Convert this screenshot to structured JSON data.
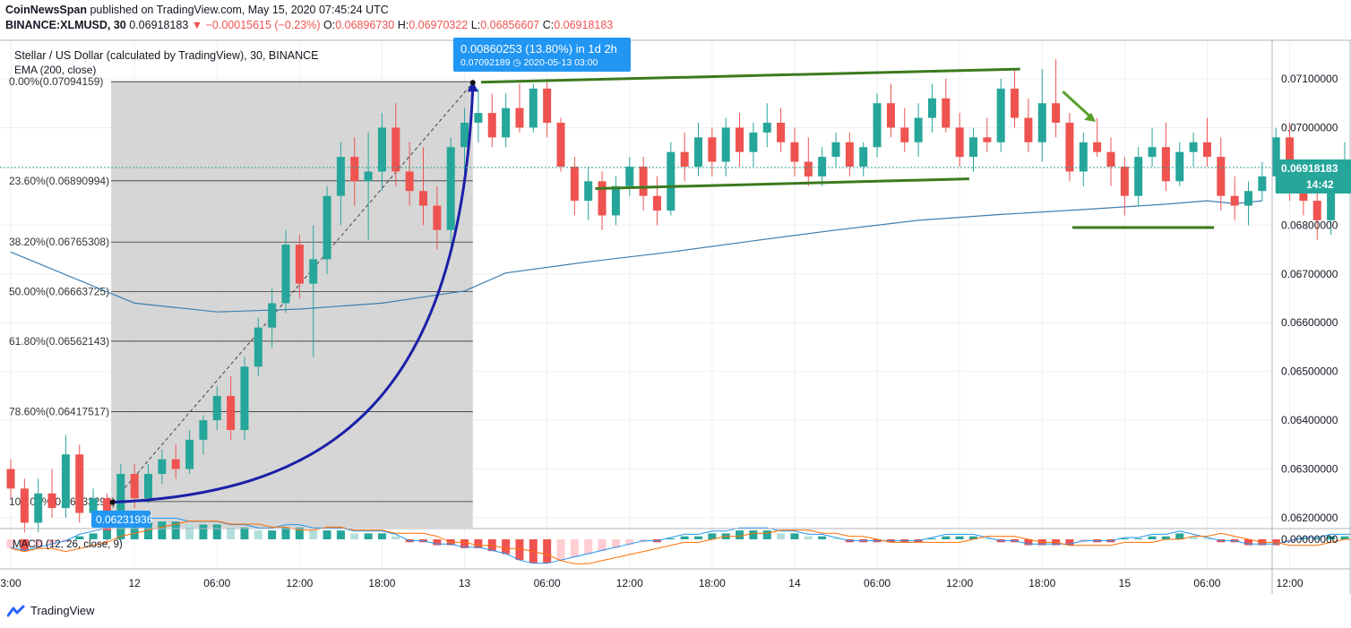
{
  "header": {
    "publisher": "CoinNewsSpan",
    "published_text": "published on TradingView.com, May 15, 2020 07:45:24 UTC",
    "symbol": "BINANCE:XLMUSD, 30",
    "last": "0.06918183",
    "change": "▼ −0.00015615 (−0.23%)",
    "o_label": "O:",
    "o": "0.06896730",
    "h_label": "H:",
    "h": "0.06970322",
    "l_label": "L:",
    "l": "0.06856607",
    "c_label": "C:",
    "c": "0.06918183"
  },
  "legend": {
    "title": "Stellar / US Dollar (calculated by TradingView), 30, BINANCE",
    "ema": "EMA (200, close)",
    "macd": "MACD (12, 26, close, 9)"
  },
  "measure": {
    "main": "0.00860253 (13.80%) in 1d 2h",
    "sub": "0.07092189 ◷ 2020-05-13  03:00",
    "start": "0.06231936",
    "color": "#2196f3"
  },
  "price_tag": {
    "value": "0.06918183",
    "countdown": "14:42",
    "color": "#26a69a"
  },
  "footer": {
    "brand": "TradingView"
  },
  "colors": {
    "up": "#26a69a",
    "down": "#ef5350",
    "ema": "#3d7fb0",
    "curve": "#1b1fa8",
    "trend": "#3b7a1e",
    "fib": "#333333"
  },
  "chart_data": {
    "type": "candlestick",
    "title": "Stellar / US Dollar (calculated by TradingView), 30, BINANCE",
    "x_ticks": [
      {
        "t": 0,
        "label": "3:00"
      },
      {
        "t": 9,
        "label": "12"
      },
      {
        "t": 15,
        "label": "06:00"
      },
      {
        "t": 21,
        "label": "12:00"
      },
      {
        "t": 27,
        "label": "18:00"
      },
      {
        "t": 33,
        "label": "13"
      },
      {
        "t": 39,
        "label": "06:00"
      },
      {
        "t": 45,
        "label": "12:00"
      },
      {
        "t": 51,
        "label": "18:00"
      },
      {
        "t": 57,
        "label": "14"
      },
      {
        "t": 63,
        "label": "06:00"
      },
      {
        "t": 69,
        "label": "12:00"
      },
      {
        "t": 75,
        "label": "18:00"
      },
      {
        "t": 81,
        "label": "15"
      },
      {
        "t": 87,
        "label": "06:00"
      },
      {
        "t": 93,
        "label": "12:00"
      }
    ],
    "y_ticks": [
      "0.07100000",
      "0.07000000",
      "0.06800000",
      "0.06700000",
      "0.06600000",
      "0.06500000",
      "0.06400000",
      "0.06300000",
      "0.06200000"
    ],
    "ylim": [
      0.0616,
      0.0716
    ],
    "fibonacci": [
      {
        "label": "0.00%(0.07094159)",
        "price": 0.07094159
      },
      {
        "label": "23.60%(0.06890994)",
        "price": 0.06890994
      },
      {
        "label": "38.20%(0.06765308)",
        "price": 0.06765308
      },
      {
        "label": "50.00%(0.06663725)",
        "price": 0.06663725
      },
      {
        "label": "61.80%(0.06562143)",
        "price": 0.06562143
      },
      {
        "label": "78.60%(0.06417517)",
        "price": 0.06417517
      },
      {
        "label": "100.00%(0.06233291)",
        "price": 0.06233291
      }
    ],
    "macd_ticks": [
      "0.00000000"
    ],
    "ohlc": [
      [
        0.063,
        0.0632,
        0.0624,
        0.0626
      ],
      [
        0.0626,
        0.0628,
        0.0617,
        0.0619
      ],
      [
        0.0619,
        0.0628,
        0.0617,
        0.0625
      ],
      [
        0.0625,
        0.063,
        0.062,
        0.0622
      ],
      [
        0.0622,
        0.0637,
        0.062,
        0.0633
      ],
      [
        0.0633,
        0.0635,
        0.0619,
        0.0621
      ],
      [
        0.0621,
        0.0626,
        0.0618,
        0.0624
      ],
      [
        0.0624,
        0.0625,
        0.0615,
        0.0617
      ],
      [
        0.0617,
        0.0631,
        0.0615,
        0.0629
      ],
      [
        0.0629,
        0.0631,
        0.0622,
        0.0624
      ],
      [
        0.0624,
        0.0631,
        0.0623,
        0.0629
      ],
      [
        0.0629,
        0.0634,
        0.0627,
        0.0632
      ],
      [
        0.0632,
        0.0635,
        0.0628,
        0.063
      ],
      [
        0.063,
        0.0638,
        0.0629,
        0.0636
      ],
      [
        0.0636,
        0.0641,
        0.0633,
        0.064
      ],
      [
        0.064,
        0.0647,
        0.0638,
        0.0645
      ],
      [
        0.0645,
        0.0649,
        0.0636,
        0.0638
      ],
      [
        0.0638,
        0.0653,
        0.0636,
        0.0651
      ],
      [
        0.0651,
        0.0661,
        0.0649,
        0.0659
      ],
      [
        0.0659,
        0.0667,
        0.0655,
        0.0664
      ],
      [
        0.0664,
        0.0679,
        0.0662,
        0.0676
      ],
      [
        0.0676,
        0.0678,
        0.0665,
        0.0668
      ],
      [
        0.0668,
        0.068,
        0.0653,
        0.0673
      ],
      [
        0.0673,
        0.0688,
        0.067,
        0.0686
      ],
      [
        0.0686,
        0.0697,
        0.068,
        0.0694
      ],
      [
        0.0694,
        0.0698,
        0.0684,
        0.0689
      ],
      [
        0.0689,
        0.0699,
        0.0677,
        0.0691
      ],
      [
        0.0691,
        0.0703,
        0.0687,
        0.07
      ],
      [
        0.07,
        0.0705,
        0.0688,
        0.0691
      ],
      [
        0.0691,
        0.0697,
        0.0684,
        0.0687
      ],
      [
        0.0687,
        0.0696,
        0.068,
        0.0684
      ],
      [
        0.0684,
        0.0688,
        0.0675,
        0.0679
      ],
      [
        0.0679,
        0.0698,
        0.0676,
        0.0696
      ],
      [
        0.0696,
        0.0704,
        0.069,
        0.0701
      ],
      [
        0.0701,
        0.0708,
        0.0697,
        0.0703
      ],
      [
        0.0703,
        0.0707,
        0.0696,
        0.0698
      ],
      [
        0.0698,
        0.0707,
        0.0696,
        0.0704
      ],
      [
        0.0704,
        0.0709,
        0.0699,
        0.07
      ],
      [
        0.07,
        0.0709,
        0.0699,
        0.0708
      ],
      [
        0.0708,
        0.071,
        0.0698,
        0.0701
      ],
      [
        0.0701,
        0.0702,
        0.0691,
        0.0692
      ],
      [
        0.0692,
        0.0694,
        0.0682,
        0.0685
      ],
      [
        0.0685,
        0.0692,
        0.0681,
        0.0689
      ],
      [
        0.0689,
        0.0691,
        0.0679,
        0.0682
      ],
      [
        0.0682,
        0.069,
        0.068,
        0.0688
      ],
      [
        0.0688,
        0.0694,
        0.0686,
        0.0692
      ],
      [
        0.0692,
        0.0694,
        0.0683,
        0.0686
      ],
      [
        0.0686,
        0.069,
        0.068,
        0.0683
      ],
      [
        0.0683,
        0.0697,
        0.0682,
        0.0695
      ],
      [
        0.0695,
        0.0699,
        0.0689,
        0.0692
      ],
      [
        0.0692,
        0.0701,
        0.069,
        0.0698
      ],
      [
        0.0698,
        0.07,
        0.069,
        0.0693
      ],
      [
        0.0693,
        0.0702,
        0.069,
        0.07
      ],
      [
        0.07,
        0.0703,
        0.0692,
        0.0695
      ],
      [
        0.0695,
        0.0701,
        0.0692,
        0.0699
      ],
      [
        0.0699,
        0.0705,
        0.0696,
        0.0701
      ],
      [
        0.0701,
        0.0704,
        0.0695,
        0.0697
      ],
      [
        0.0697,
        0.07,
        0.069,
        0.0693
      ],
      [
        0.0693,
        0.0698,
        0.0688,
        0.069
      ],
      [
        0.069,
        0.0696,
        0.0688,
        0.0694
      ],
      [
        0.0694,
        0.0699,
        0.0692,
        0.0697
      ],
      [
        0.0697,
        0.0699,
        0.069,
        0.0692
      ],
      [
        0.0692,
        0.0697,
        0.069,
        0.0696
      ],
      [
        0.0696,
        0.0707,
        0.0694,
        0.0705
      ],
      [
        0.0705,
        0.0709,
        0.0698,
        0.07
      ],
      [
        0.07,
        0.0704,
        0.0695,
        0.0697
      ],
      [
        0.0697,
        0.0705,
        0.0694,
        0.0702
      ],
      [
        0.0702,
        0.0709,
        0.0699,
        0.0706
      ],
      [
        0.0706,
        0.071,
        0.0699,
        0.07
      ],
      [
        0.07,
        0.0703,
        0.0692,
        0.0694
      ],
      [
        0.0694,
        0.07,
        0.0691,
        0.0698
      ],
      [
        0.0698,
        0.0702,
        0.0695,
        0.0697
      ],
      [
        0.0697,
        0.071,
        0.0695,
        0.0708
      ],
      [
        0.0708,
        0.0712,
        0.07,
        0.0702
      ],
      [
        0.0702,
        0.0706,
        0.0695,
        0.0697
      ],
      [
        0.0697,
        0.0712,
        0.0693,
        0.0705
      ],
      [
        0.0705,
        0.0714,
        0.0698,
        0.0701
      ],
      [
        0.0701,
        0.0703,
        0.0689,
        0.0691
      ],
      [
        0.0691,
        0.0699,
        0.0688,
        0.0697
      ],
      [
        0.0697,
        0.0702,
        0.0694,
        0.0695
      ],
      [
        0.0695,
        0.0698,
        0.0688,
        0.0692
      ],
      [
        0.0692,
        0.0694,
        0.0682,
        0.0686
      ],
      [
        0.0686,
        0.0696,
        0.0684,
        0.0694
      ],
      [
        0.0694,
        0.07,
        0.0692,
        0.0696
      ],
      [
        0.0696,
        0.0701,
        0.0687,
        0.0689
      ],
      [
        0.0689,
        0.0697,
        0.0688,
        0.0695
      ],
      [
        0.0695,
        0.0699,
        0.0692,
        0.0697
      ],
      [
        0.0697,
        0.0702,
        0.0692,
        0.0694
      ],
      [
        0.0694,
        0.0698,
        0.0683,
        0.0686
      ],
      [
        0.0686,
        0.069,
        0.0681,
        0.0684
      ],
      [
        0.0684,
        0.0689,
        0.068,
        0.0687
      ],
      [
        0.0687,
        0.0693,
        0.0685,
        0.069
      ],
      [
        0.069,
        0.07,
        0.0687,
        0.0698
      ],
      [
        0.0698,
        0.0701,
        0.0685,
        0.0688
      ],
      [
        0.0688,
        0.0692,
        0.0682,
        0.0685
      ],
      [
        0.0685,
        0.0688,
        0.0677,
        0.0681
      ],
      [
        0.0681,
        0.0693,
        0.0678,
        0.069
      ],
      [
        0.069,
        0.0697,
        0.0689,
        0.0692
      ],
      [
        0.0692,
        0.0697,
        0.0688,
        0.0691
      ],
      [
        0.0691,
        0.0694,
        0.0686,
        0.0689
      ],
      [
        0.0689,
        0.0692,
        0.0679,
        0.0681
      ],
      [
        0.0681,
        0.069,
        0.0674,
        0.0688
      ],
      [
        0.0688,
        0.0693,
        0.0685,
        0.069
      ],
      [
        0.069,
        0.0696,
        0.0688,
        0.0694
      ],
      [
        0.0694,
        0.0703,
        0.069,
        0.0697
      ],
      [
        0.0697,
        0.07,
        0.0687,
        0.0689
      ],
      [
        0.0689,
        0.0695,
        0.0684,
        0.0686
      ],
      [
        0.0686,
        0.07,
        0.0682,
        0.0697
      ],
      [
        0.0697,
        0.0699,
        0.0688,
        0.0691
      ],
      [
        0.0691,
        0.0697,
        0.0687,
        0.0693
      ],
      [
        0.0693,
        0.07,
        0.069,
        0.0696
      ],
      [
        0.0696,
        0.0699,
        0.0689,
        0.0691
      ],
      [
        0.0691,
        0.0695,
        0.0686,
        0.0688
      ],
      [
        0.0688,
        0.0694,
        0.0685,
        0.0692
      ],
      [
        0.0692,
        0.0696,
        0.0689,
        0.0694
      ],
      [
        0.0694,
        0.0697,
        0.0689,
        0.0691
      ],
      [
        0.0691,
        0.0695,
        0.0683,
        0.0686
      ],
      [
        0.0686,
        0.0689,
        0.0679,
        0.0681
      ],
      [
        0.0681,
        0.0686,
        0.0676,
        0.0685
      ],
      [
        0.0685,
        0.0687,
        0.0677,
        0.0679
      ],
      [
        0.0679,
        0.0688,
        0.0676,
        0.0686
      ],
      [
        0.0686,
        0.0688,
        0.068,
        0.0683
      ],
      [
        0.0683,
        0.0685,
        0.0676,
        0.0679
      ],
      [
        0.0679,
        0.0684,
        0.0673,
        0.0681
      ],
      [
        0.0681,
        0.0686,
        0.0676,
        0.0684
      ],
      [
        0.0684,
        0.0687,
        0.068,
        0.0685
      ],
      [
        0.0685,
        0.0694,
        0.0683,
        0.069
      ],
      [
        0.069,
        0.0697,
        0.0686,
        0.0692
      ]
    ],
    "ema": [
      [
        0,
        0.06745
      ],
      [
        9,
        0.0664
      ],
      [
        15,
        0.06622
      ],
      [
        21,
        0.06628
      ],
      [
        27,
        0.0664
      ],
      [
        33,
        0.06665
      ],
      [
        36,
        0.06702
      ],
      [
        42,
        0.06725
      ],
      [
        48,
        0.06745
      ],
      [
        54,
        0.06768
      ],
      [
        60,
        0.0679
      ],
      [
        66,
        0.0681
      ],
      [
        72,
        0.06822
      ],
      [
        78,
        0.06832
      ],
      [
        84,
        0.06843
      ],
      [
        87,
        0.0685
      ],
      [
        89,
        0.06844
      ],
      [
        91,
        0.0685
      ]
    ],
    "macd_hist": [
      -3,
      -4,
      -3,
      -2,
      -1,
      1,
      2,
      3,
      4,
      5,
      6,
      6,
      6,
      5,
      5,
      5,
      4,
      4,
      3,
      3,
      4,
      4,
      3,
      3,
      3,
      2,
      2,
      2,
      1,
      -1,
      -1,
      -2,
      -2,
      -3,
      -3,
      -4,
      -5,
      -7,
      -8,
      -8,
      -7,
      -6,
      -5,
      -4,
      -3,
      -2,
      -1,
      -1,
      0,
      1,
      1,
      2,
      2,
      3,
      3,
      3,
      2,
      2,
      1,
      1,
      0,
      -1,
      -1,
      -1,
      -1,
      -1,
      -1,
      0,
      1,
      1,
      1,
      0,
      -1,
      -1,
      -2,
      -2,
      -2,
      -2,
      -1,
      -1,
      -1,
      0,
      0,
      1,
      1,
      2,
      1,
      0,
      -1,
      -1,
      -2,
      -2,
      -2,
      -1,
      0,
      0,
      1,
      1,
      1,
      1,
      1,
      2,
      2,
      2,
      1,
      0,
      -1,
      -1,
      -2,
      -2,
      -2,
      -1,
      0,
      1,
      1,
      1,
      1,
      1,
      1,
      1,
      0,
      -1,
      -2,
      -3,
      -3,
      -2,
      -1,
      0,
      1,
      2
    ]
  }
}
